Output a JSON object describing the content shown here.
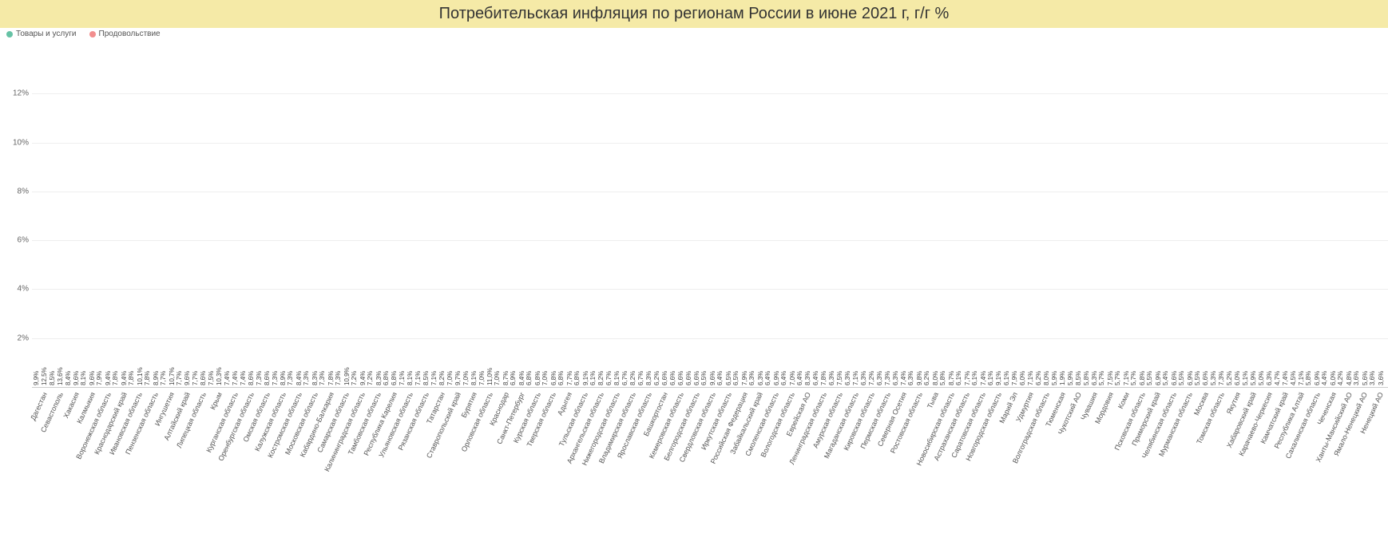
{
  "title": "Потребительская инфляция по регионам России в июне 2021 г,  г/г %",
  "title_bg": "#f5eaa7",
  "legend": [
    {
      "label": "Товары и услуги",
      "color": "#66c2a5"
    },
    {
      "label": "Продовольствие",
      "color": "#f28e8e"
    }
  ],
  "y_axis": {
    "min": 0,
    "max": 14,
    "ticks": [
      2,
      4,
      6,
      8,
      10,
      12
    ],
    "suffix": "%",
    "grid_color": "#eeeeee"
  },
  "colors": {
    "series_a": "#66c2a5",
    "series_b": "#f28e8e",
    "label": "#444"
  },
  "data": [
    {
      "r": "Дагестан",
      "a": 9.9,
      "b": 12.5
    },
    {
      "r": "Севастополь",
      "a": 8.5,
      "b": 13.6
    },
    {
      "r": "Хакасия",
      "a": 8.4,
      "b": 9.6
    },
    {
      "r": "Калмыкия",
      "a": 8.1,
      "b": 9.6
    },
    {
      "r": "Воронежская область",
      "a": 7.9,
      "b": 9.4
    },
    {
      "r": "Краснодарский край",
      "a": 7.8,
      "b": 9.4
    },
    {
      "r": "Ивановская область",
      "a": 7.8,
      "b": 10.1
    },
    {
      "r": "Пензенская область",
      "a": 7.8,
      "b": 8.9
    },
    {
      "r": "Ингушетия",
      "a": 7.7,
      "b": 10.7
    },
    {
      "r": "Алтайский край",
      "a": 7.7,
      "b": 9.6
    },
    {
      "r": "Липецкая область",
      "a": 7.7,
      "b": 8.6
    },
    {
      "r": "Крым",
      "a": 7.5,
      "b": 10.3
    },
    {
      "r": "Курганская область",
      "a": 7.4,
      "b": 7.4
    },
    {
      "r": "Оренбургская область",
      "a": 7.4,
      "b": 8.6
    },
    {
      "r": "Омская область",
      "a": 7.3,
      "b": 8.6
    },
    {
      "r": "Калужская область",
      "a": 7.3,
      "b": 8.9
    },
    {
      "r": "Костромская область",
      "a": 7.3,
      "b": 8.4
    },
    {
      "r": "Московская область",
      "a": 7.3,
      "b": 8.3
    },
    {
      "r": "Кабардино-Балкария",
      "a": 7.3,
      "b": 7.8
    },
    {
      "r": "Самарская область",
      "a": 7.3,
      "b": 10.9
    },
    {
      "r": "Калининградская область",
      "a": 7.2,
      "b": 9.4
    },
    {
      "r": "Тамбовская область",
      "a": 7.2,
      "b": 8.3
    },
    {
      "r": "Республика Карелия",
      "a": 6.8,
      "b": 6.8
    },
    {
      "r": "Ульяновская область",
      "a": 7.1,
      "b": 8.1
    },
    {
      "r": "Рязанская область",
      "a": 7.1,
      "b": 8.5
    },
    {
      "r": "Татарстан",
      "a": 7.1,
      "b": 8.2
    },
    {
      "r": "Ставропольский край",
      "a": 7.0,
      "b": 9.7
    },
    {
      "r": "Бурятия",
      "a": 7.0,
      "b": 8.1
    },
    {
      "r": "Орловская область",
      "a": 7.0,
      "b": 11.0
    },
    {
      "r": "Краснодар",
      "a": 7.0,
      "b": 8.7
    },
    {
      "r": "Санкт-Петербург",
      "a": 6.9,
      "b": 8.4
    },
    {
      "r": "Курская область",
      "a": 6.8,
      "b": 6.8
    },
    {
      "r": "Тверская область",
      "a": 7.0,
      "b": 6.8
    },
    {
      "r": "Адыгея",
      "a": 6.8,
      "b": 7.7
    },
    {
      "r": "Тульская область",
      "a": 6.8,
      "b": 9.1
    },
    {
      "r": "Архангельская область",
      "a": 6.1,
      "b": 8.2
    },
    {
      "r": "Нижегородская область",
      "a": 6.7,
      "b": 8.1
    },
    {
      "r": "Владимирская область",
      "a": 6.7,
      "b": 8.2
    },
    {
      "r": "Ярославская область",
      "a": 6.7,
      "b": 8.3
    },
    {
      "r": "Башкортостан",
      "a": 6.2,
      "b": 6.6
    },
    {
      "r": "Кемеровская область",
      "a": 6.6,
      "b": 6.6
    },
    {
      "r": "Белгородская область",
      "a": 6.6,
      "b": 6.6
    },
    {
      "r": "Свердловская область",
      "a": 6.5,
      "b": 9.6
    },
    {
      "r": "Иркутская область",
      "a": 6.4,
      "b": 6.5
    },
    {
      "r": "Российская Федерация",
      "a": 6.5,
      "b": 7.9
    },
    {
      "r": "Забайкальский край",
      "a": 6.3,
      "b": 6.3
    },
    {
      "r": "Смоленская область",
      "a": 6.4,
      "b": 6.9
    },
    {
      "r": "Вологодская область",
      "a": 6.4,
      "b": 7.0
    },
    {
      "r": "Еврейская АО",
      "a": 6.4,
      "b": 8.3
    },
    {
      "r": "Ленинградская область",
      "a": 6.4,
      "b": 7.8
    },
    {
      "r": "Амурская область",
      "a": 6.3,
      "b": 7.5
    },
    {
      "r": "Магаданская область",
      "a": 6.3,
      "b": 7.1
    },
    {
      "r": "Кировская область",
      "a": 6.3,
      "b": 7.2
    },
    {
      "r": "Пермская область",
      "a": 6.3,
      "b": 7.3
    },
    {
      "r": "Северная Осетия",
      "a": 6.3,
      "b": 7.4
    },
    {
      "r": "Ростовская область",
      "a": 6.3,
      "b": 9.8
    },
    {
      "r": "Тыва",
      "a": 6.2,
      "b": 8.0
    },
    {
      "r": "Новосибирская область",
      "a": 5.8,
      "b": 8.7
    },
    {
      "r": "Астраханская область",
      "a": 6.1,
      "b": 7.7
    },
    {
      "r": "Саратовская область",
      "a": 6.1,
      "b": 7.4
    },
    {
      "r": "Новгородская область",
      "a": 6.1,
      "b": 9.1
    },
    {
      "r": "Марий Эл",
      "a": 6.1,
      "b": 7.9
    },
    {
      "r": "Удмуртия",
      "a": 6.0,
      "b": 7.1
    },
    {
      "r": "Волгоградская область",
      "a": 6.2,
      "b": 8.0
    },
    {
      "r": "Тюменская",
      "a": 5.9,
      "b": 1.9
    },
    {
      "r": "Чукотский АО",
      "a": 5.9,
      "b": 8.5
    },
    {
      "r": "Чувашия",
      "a": 5.8,
      "b": 6.3
    },
    {
      "r": "Мордовия",
      "a": 5.7,
      "b": 7.5
    },
    {
      "r": "Коми",
      "a": 5.7,
      "b": 7.1
    },
    {
      "r": "Псковская область",
      "a": 5.7,
      "b": 6.8
    },
    {
      "r": "Приморский край",
      "a": 5.5,
      "b": 6.9
    },
    {
      "r": "Челябинская область",
      "a": 5.4,
      "b": 6.6
    },
    {
      "r": "Мурманская область",
      "a": 5.5,
      "b": 6.9
    },
    {
      "r": "Москва",
      "a": 5.5,
      "b": 6.6
    },
    {
      "r": "Томская область",
      "a": 5.3,
      "b": 7.3
    },
    {
      "r": "Якутия",
      "a": 5.2,
      "b": 6.0
    },
    {
      "r": "Хабаровский край",
      "a": 5.1,
      "b": 5.9
    },
    {
      "r": "Карачаево-Черкесия",
      "a": 5.0,
      "b": 6.3
    },
    {
      "r": "Камчатский край",
      "a": 4.7,
      "b": 7.4
    },
    {
      "r": "Республика Алтай",
      "a": 4.5,
      "b": 7.1
    },
    {
      "r": "Сахалинская область",
      "a": 5.8,
      "b": 6.9
    },
    {
      "r": "Чеченская",
      "a": 4.4,
      "b": 6.0
    },
    {
      "r": "Ханты-Мансийский АО",
      "a": 4.2,
      "b": 4.8
    },
    {
      "r": "Ямало-Ненецкий АО",
      "a": 3.6,
      "b": 5.6
    },
    {
      "r": "Ненецкий АО",
      "a": 3.6,
      "b": 3.6
    }
  ]
}
